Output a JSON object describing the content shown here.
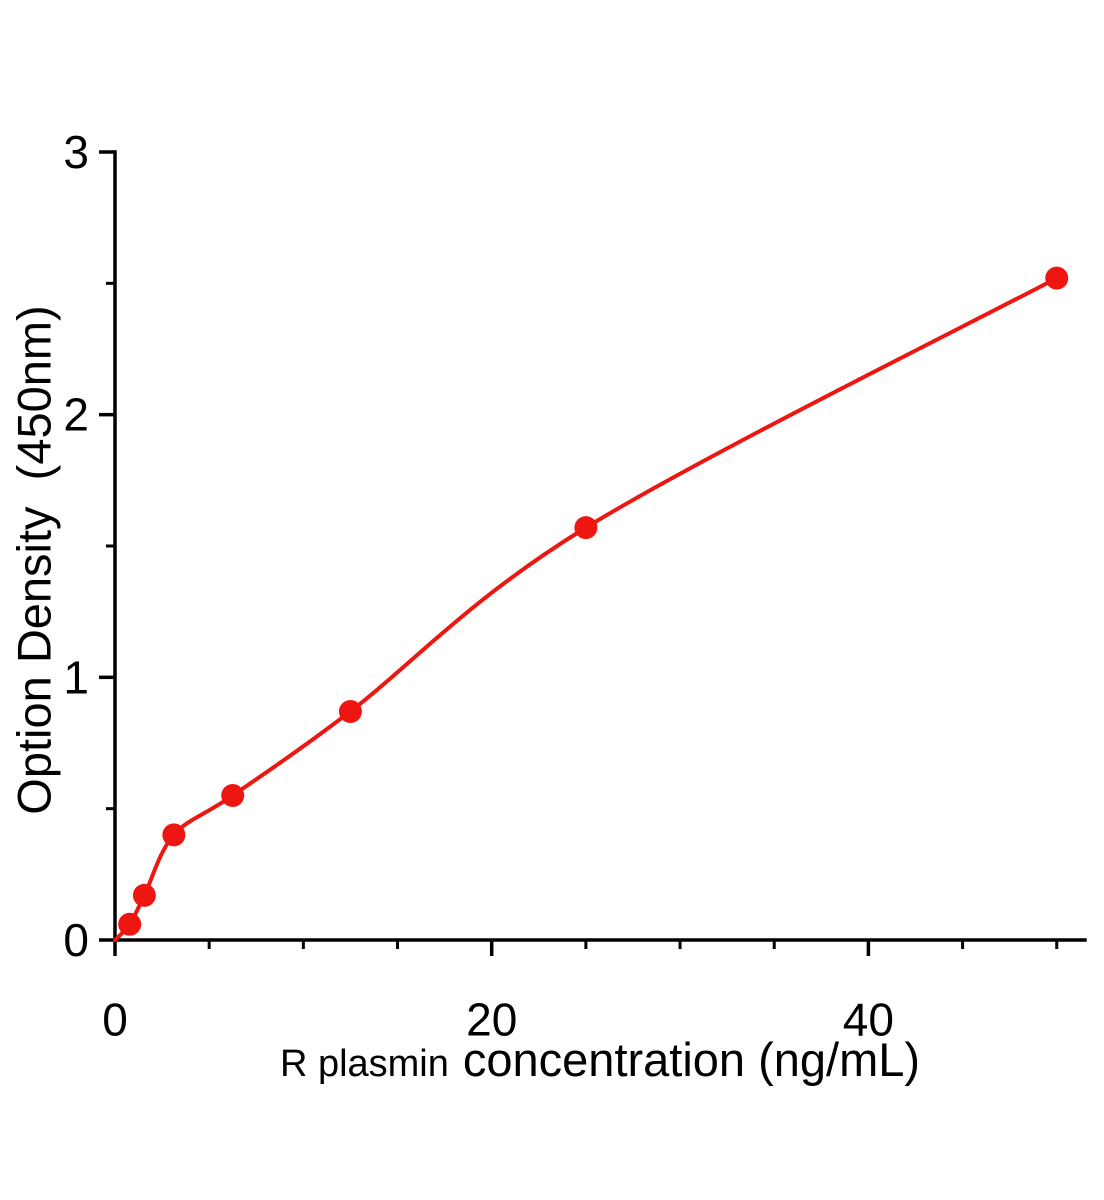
{
  "chart_data": {
    "type": "scatter",
    "title": "",
    "ylabel": "Option Density  (450nm)",
    "xlabel_prefix": "R plasmin",
    "xlabel_main": "concentration (ng/mL)",
    "x": [
      0.78,
      1.56,
      3.125,
      6.25,
      12.5,
      25,
      50
    ],
    "y": [
      0.06,
      0.17,
      0.4,
      0.55,
      0.87,
      1.57,
      2.52
    ],
    "curve_through_origin": true,
    "xlim": [
      0,
      51.5
    ],
    "ylim": [
      0,
      3
    ],
    "x_major_ticks": [
      0,
      20,
      40
    ],
    "x_minor_step": 5,
    "y_major_ticks": [
      0,
      1,
      2,
      3
    ],
    "y_minor_step": 0.5,
    "grid": false,
    "legend": null,
    "colors": {
      "point": "#ee1610",
      "line": "#ee1610",
      "axis": "#000000"
    }
  }
}
